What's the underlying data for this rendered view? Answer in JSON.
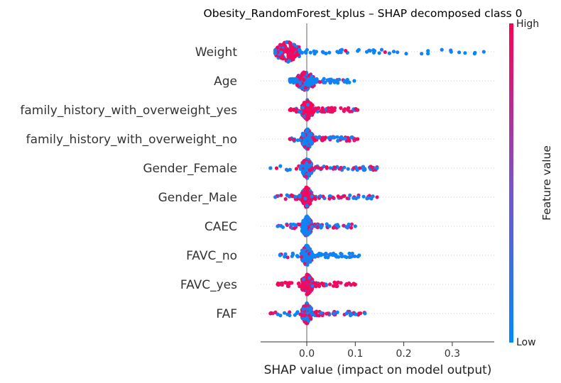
{
  "chart_data": {
    "type": "scatter",
    "title": "Obesity_RandomForest_kplus – SHAP decomposed class 0",
    "xlabel": "SHAP value (impact on model output)",
    "ylabel": "",
    "xlim": [
      -0.09,
      0.38
    ],
    "xticks": [
      {
        "value": 0.0,
        "label": "0.0"
      },
      {
        "value": 0.1,
        "label": "0.1"
      },
      {
        "value": 0.2,
        "label": "0.2"
      },
      {
        "value": 0.3,
        "label": "0.3"
      }
    ],
    "grid": false,
    "colorbar": {
      "label": "Feature value",
      "high_label": "High",
      "low_label": "Low",
      "low_color": "#008afb",
      "mid_color": "#7c52c8",
      "high_color": "#ff0052"
    },
    "features": [
      {
        "name": "Weight",
        "min": -0.065,
        "max": 0.365,
        "core": [
          -0.065,
          -0.015
        ],
        "tail_color": "low",
        "core_color": "high",
        "density": "high-left"
      },
      {
        "name": "Age",
        "min": -0.035,
        "max": 0.098,
        "core": [
          -0.02,
          0.015
        ],
        "tail_color": "low",
        "core_color": "mixed",
        "density": "center"
      },
      {
        "name": "family_history_with_overweight_yes",
        "min": -0.035,
        "max": 0.105,
        "core": [
          -0.01,
          0.012
        ],
        "tail_color": "high",
        "core_color": "high",
        "density": "center"
      },
      {
        "name": "family_history_with_overweight_no",
        "min": -0.035,
        "max": 0.105,
        "core": [
          -0.01,
          0.012
        ],
        "tail_color": "mixed",
        "core_color": "low",
        "density": "center"
      },
      {
        "name": "Gender_Female",
        "min": -0.075,
        "max": 0.145,
        "core": [
          -0.01,
          0.01
        ],
        "tail_color": "mixed",
        "core_color": "low",
        "density": "center"
      },
      {
        "name": "Gender_Male",
        "min": -0.065,
        "max": 0.145,
        "core": [
          -0.01,
          0.01
        ],
        "tail_color": "mixed",
        "core_color": "high",
        "density": "center"
      },
      {
        "name": "CAEC",
        "min": -0.06,
        "max": 0.1,
        "core": [
          -0.01,
          0.01
        ],
        "tail_color": "mixed",
        "core_color": "low",
        "density": "center"
      },
      {
        "name": "FAVC_no",
        "min": -0.055,
        "max": 0.108,
        "core": [
          -0.01,
          0.01
        ],
        "tail_color": "low",
        "core_color": "low",
        "density": "center"
      },
      {
        "name": "FAVC_yes",
        "min": -0.06,
        "max": 0.1,
        "core": [
          -0.01,
          0.012
        ],
        "tail_color": "high",
        "core_color": "high",
        "density": "center"
      },
      {
        "name": "FAF",
        "min": -0.075,
        "max": 0.12,
        "core": [
          -0.01,
          0.01
        ],
        "tail_color": "mixed",
        "core_color": "mixed",
        "density": "center"
      }
    ]
  }
}
